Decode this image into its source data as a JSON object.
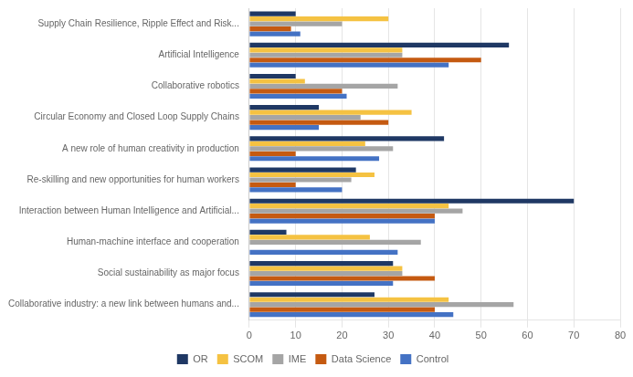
{
  "chart_data": {
    "type": "bar",
    "orientation": "horizontal",
    "categories": [
      "Supply Chain Resilience, Ripple Effect and Risk...",
      "Artificial Intelligence",
      "Collaborative robotics",
      "Circular Economy and Closed Loop Supply Chains",
      "A new role of human creativity in production",
      "Re-skilling and new opportunities for human workers",
      "Interaction between Human Intelligence and Artificial...",
      "Human-machine interface and cooperation",
      "Social sustainability as major focus",
      "Collaborative industry: a new link between humans and..."
    ],
    "series": [
      {
        "name": "OR",
        "color": "#1f3864",
        "values": [
          10,
          56,
          10,
          15,
          42,
          23,
          70,
          8,
          31,
          27
        ]
      },
      {
        "name": "SCOM",
        "color": "#f5c242",
        "values": [
          30,
          33,
          12,
          35,
          25,
          27,
          43,
          26,
          33,
          43
        ]
      },
      {
        "name": "IME",
        "color": "#a5a5a5",
        "values": [
          20,
          33,
          32,
          24,
          31,
          22,
          46,
          37,
          33,
          57
        ]
      },
      {
        "name": "Data Science",
        "color": "#c55a11",
        "values": [
          9,
          50,
          20,
          30,
          10,
          10,
          40,
          0,
          40,
          40
        ]
      },
      {
        "name": "Control",
        "color": "#4472c4",
        "values": [
          11,
          43,
          21,
          15,
          28,
          20,
          40,
          32,
          31,
          44
        ]
      }
    ],
    "xlim": [
      0,
      80
    ],
    "xticks": [
      0,
      10,
      20,
      30,
      40,
      50,
      60,
      70,
      80
    ],
    "grid": true,
    "legend": "bottom"
  }
}
